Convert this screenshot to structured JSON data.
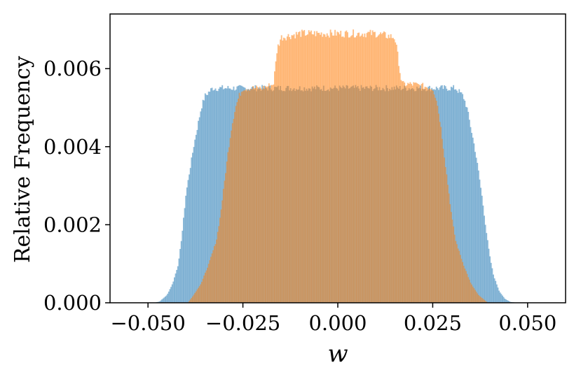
{
  "chart_data": {
    "type": "area",
    "xlabel": "w",
    "ylabel": "Relative Frequency",
    "xlim": [
      -0.06,
      0.06
    ],
    "ylim": [
      0.0,
      0.0074
    ],
    "xticks": [
      -0.05,
      -0.025,
      0.0,
      0.025,
      0.05
    ],
    "xtick_labels": [
      "−0.050",
      "−0.025",
      "0.000",
      "0.025",
      "0.050"
    ],
    "yticks": [
      0.0,
      0.002,
      0.004,
      0.006
    ],
    "ytick_labels": [
      "0.000",
      "0.002",
      "0.004",
      "0.006"
    ],
    "grid": false,
    "legend": false,
    "series": [
      {
        "color": "#1f77b4",
        "alpha": 0.5,
        "x": [
          -0.0485,
          -0.047,
          -0.045,
          -0.0435,
          -0.042,
          -0.041,
          -0.04,
          -0.039,
          -0.038,
          -0.037,
          -0.036,
          -0.035,
          -0.034,
          -0.033,
          -0.03,
          -0.02,
          0.0,
          0.02,
          0.03,
          0.031,
          0.032,
          0.033,
          0.034,
          0.035,
          0.036,
          0.037,
          0.038,
          0.039,
          0.04,
          0.041,
          0.0425,
          0.044,
          0.0455,
          0.0475
        ],
        "y": [
          0.0,
          3e-05,
          0.0002,
          0.0005,
          0.001,
          0.0018,
          0.0028,
          0.0034,
          0.004,
          0.0045,
          0.005,
          0.0053,
          0.0054,
          0.0055,
          0.0055,
          0.0055,
          0.0055,
          0.0055,
          0.0055,
          0.0055,
          0.0054,
          0.0053,
          0.005,
          0.0045,
          0.004,
          0.0034,
          0.0027,
          0.0019,
          0.0012,
          0.0007,
          0.0003,
          0.0001,
          2e-05,
          0.0
        ]
      },
      {
        "color": "#ff7f0e",
        "alpha": 0.5,
        "x": [
          -0.0395,
          -0.038,
          -0.036,
          -0.034,
          -0.032,
          -0.031,
          -0.03,
          -0.029,
          -0.028,
          -0.027,
          -0.026,
          -0.025,
          -0.02,
          -0.017,
          -0.0165,
          -0.016,
          -0.015,
          -0.01,
          0.0,
          0.01,
          0.015,
          0.016,
          0.0165,
          0.017,
          0.02,
          0.025,
          0.026,
          0.027,
          0.028,
          0.029,
          0.03,
          0.031,
          0.033,
          0.035,
          0.037,
          0.0395
        ],
        "y": [
          0.0,
          0.0002,
          0.0005,
          0.001,
          0.0016,
          0.0022,
          0.003,
          0.0038,
          0.0045,
          0.005,
          0.0053,
          0.0055,
          0.0055,
          0.0056,
          0.006,
          0.0065,
          0.0068,
          0.0069,
          0.0069,
          0.0069,
          0.0068,
          0.0062,
          0.0058,
          0.0056,
          0.0056,
          0.0055,
          0.0052,
          0.0046,
          0.0038,
          0.003,
          0.0022,
          0.0016,
          0.001,
          0.0005,
          0.0002,
          0.0
        ]
      }
    ]
  }
}
